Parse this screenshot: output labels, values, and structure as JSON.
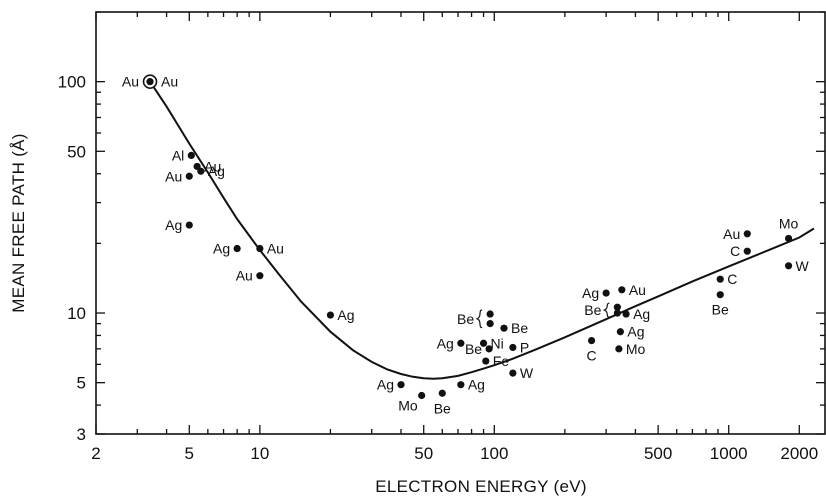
{
  "chart_data": {
    "type": "scatter",
    "xlabel": "ELECTRON ENERGY (eV)",
    "ylabel": "MEAN FREE PATH (Å)",
    "xscale": "log",
    "yscale": "log",
    "xlim": [
      2,
      2600
    ],
    "ylim": [
      3,
      200
    ],
    "x_ticks": [
      {
        "value": 2,
        "label": "2"
      },
      {
        "value": 5,
        "label": "5"
      },
      {
        "value": 10,
        "label": "10"
      },
      {
        "value": 50,
        "label": "50"
      },
      {
        "value": 100,
        "label": "100"
      },
      {
        "value": 500,
        "label": "500"
      },
      {
        "value": 1000,
        "label": "1000"
      },
      {
        "value": 2000,
        "label": "2000"
      }
    ],
    "y_ticks": [
      {
        "value": 3,
        "label": "3"
      },
      {
        "value": 5,
        "label": "5"
      },
      {
        "value": 10,
        "label": "10"
      },
      {
        "value": 50,
        "label": "50"
      },
      {
        "value": 100,
        "label": "100"
      }
    ],
    "grid": false,
    "points": [
      {
        "element": "Au",
        "x": 3.4,
        "y": 100,
        "circled": true,
        "labels": [
          {
            "text": "Au",
            "side": "left"
          },
          {
            "text": "Au",
            "side": "right"
          }
        ]
      },
      {
        "element": "Al",
        "x": 5.1,
        "y": 48,
        "labels": [
          {
            "text": "Al",
            "side": "left"
          }
        ]
      },
      {
        "element": "Au",
        "x": 5.4,
        "y": 43,
        "labels": [
          {
            "text": "Au",
            "side": "right"
          }
        ]
      },
      {
        "element": "Au",
        "x": 5.0,
        "y": 39,
        "labels": [
          {
            "text": "Au",
            "side": "left"
          }
        ]
      },
      {
        "element": "Ag",
        "x": 5.6,
        "y": 41,
        "labels": [
          {
            "text": "Ag",
            "side": "right"
          }
        ]
      },
      {
        "element": "Ag",
        "x": 5.0,
        "y": 24,
        "labels": [
          {
            "text": "Ag",
            "side": "left"
          }
        ]
      },
      {
        "element": "Ag",
        "x": 8.0,
        "y": 19,
        "labels": [
          {
            "text": "Ag",
            "side": "left"
          }
        ]
      },
      {
        "element": "Au",
        "x": 10.0,
        "y": 19,
        "labels": [
          {
            "text": "Au",
            "side": "right"
          }
        ]
      },
      {
        "element": "Au",
        "x": 10.0,
        "y": 14.5,
        "labels": [
          {
            "text": "Au",
            "side": "left"
          }
        ]
      },
      {
        "element": "Ag",
        "x": 20.0,
        "y": 9.8,
        "labels": [
          {
            "text": "Ag",
            "side": "right"
          }
        ]
      },
      {
        "element": "Ag",
        "x": 40.0,
        "y": 4.9,
        "labels": [
          {
            "text": "Ag",
            "side": "left"
          }
        ]
      },
      {
        "element": "Mo",
        "x": 49.0,
        "y": 4.4,
        "labels": [
          {
            "text": "Mo",
            "side": "below-left"
          }
        ]
      },
      {
        "element": "Be",
        "x": 60.0,
        "y": 4.5,
        "labels": [
          {
            "text": "Be",
            "side": "below"
          }
        ]
      },
      {
        "element": "Ag",
        "x": 72.0,
        "y": 4.9,
        "labels": [
          {
            "text": "Ag",
            "side": "right"
          }
        ]
      },
      {
        "element": "Ag",
        "x": 72.0,
        "y": 7.4,
        "labels": [
          {
            "text": "Ag",
            "side": "left"
          }
        ]
      },
      {
        "element": "Be",
        "x": 96.0,
        "y": 9.9,
        "labels": []
      },
      {
        "element": "Be",
        "x": 96.0,
        "y": 9.0,
        "labels": []
      },
      {
        "element": "Be",
        "x": 110.0,
        "y": 8.6,
        "labels": [
          {
            "text": "Be",
            "side": "right"
          }
        ]
      },
      {
        "element": "Ni",
        "x": 90.0,
        "y": 7.4,
        "labels": [
          {
            "text": "Ni",
            "side": "right"
          }
        ]
      },
      {
        "element": "Be",
        "x": 95.0,
        "y": 7.0,
        "labels": [
          {
            "text": "Be",
            "side": "left"
          }
        ]
      },
      {
        "element": "P",
        "x": 120.0,
        "y": 7.1,
        "labels": [
          {
            "text": "P",
            "side": "right"
          }
        ]
      },
      {
        "element": "Fe",
        "x": 92.0,
        "y": 6.2,
        "labels": [
          {
            "text": "Fe",
            "side": "right"
          }
        ]
      },
      {
        "element": "W",
        "x": 120.0,
        "y": 5.5,
        "labels": [
          {
            "text": "W",
            "side": "right"
          }
        ]
      },
      {
        "element": "Ag",
        "x": 300.0,
        "y": 12.2,
        "labels": [
          {
            "text": "Ag",
            "side": "left"
          }
        ]
      },
      {
        "element": "Au",
        "x": 350.0,
        "y": 12.6,
        "labels": [
          {
            "text": "Au",
            "side": "right"
          }
        ]
      },
      {
        "element": "Be",
        "x": 335.0,
        "y": 10.6,
        "labels": []
      },
      {
        "element": "Be",
        "x": 335.0,
        "y": 10.0,
        "labels": []
      },
      {
        "element": "Ag",
        "x": 365.0,
        "y": 9.9,
        "labels": [
          {
            "text": "Ag",
            "side": "right"
          }
        ]
      },
      {
        "element": "Ag",
        "x": 345.0,
        "y": 8.3,
        "labels": [
          {
            "text": "Ag",
            "side": "right"
          }
        ]
      },
      {
        "element": "C",
        "x": 260.0,
        "y": 7.6,
        "labels": [
          {
            "text": "C",
            "side": "below"
          }
        ]
      },
      {
        "element": "Mo",
        "x": 340.0,
        "y": 7.0,
        "labels": [
          {
            "text": "Mo",
            "side": "right"
          }
        ]
      },
      {
        "element": "Au",
        "x": 1200.0,
        "y": 22.0,
        "labels": [
          {
            "text": "Au",
            "side": "left"
          }
        ]
      },
      {
        "element": "C",
        "x": 1200.0,
        "y": 18.5,
        "labels": [
          {
            "text": "C",
            "side": "left"
          }
        ]
      },
      {
        "element": "Mo",
        "x": 1800.0,
        "y": 21.0,
        "labels": [
          {
            "text": "Mo",
            "side": "above"
          }
        ]
      },
      {
        "element": "W",
        "x": 1800.0,
        "y": 16.0,
        "labels": [
          {
            "text": "W",
            "side": "right"
          }
        ]
      },
      {
        "element": "C",
        "x": 920.0,
        "y": 14.0,
        "labels": [
          {
            "text": "C",
            "side": "right"
          }
        ]
      },
      {
        "element": "Be",
        "x": 920.0,
        "y": 12.0,
        "labels": [
          {
            "text": "Be",
            "side": "below"
          }
        ]
      }
    ],
    "brace_groups": [
      {
        "label": "Be",
        "x": 96.0,
        "y_range": [
          9.0,
          9.9
        ]
      },
      {
        "label": "Be",
        "x": 335.0,
        "y_range": [
          10.0,
          10.6
        ]
      }
    ],
    "curve": {
      "x": [
        3.4,
        4,
        5,
        6,
        7,
        8,
        10,
        12,
        15,
        20,
        25,
        30,
        35,
        40,
        45,
        50,
        55,
        60,
        70,
        80,
        90,
        100,
        120,
        150,
        200,
        300,
        400,
        500,
        700,
        1000,
        1500,
        2000,
        2500
      ],
      "y": [
        100,
        78,
        54,
        40.5,
        31.5,
        25.5,
        18.7,
        14.8,
        11.2,
        8.3,
        6.9,
        6.15,
        5.7,
        5.45,
        5.3,
        5.22,
        5.2,
        5.22,
        5.35,
        5.55,
        5.75,
        5.95,
        6.35,
        6.95,
        7.85,
        9.4,
        10.7,
        11.8,
        13.7,
        15.9,
        18.8,
        21.2,
        23.2
      ]
    }
  }
}
